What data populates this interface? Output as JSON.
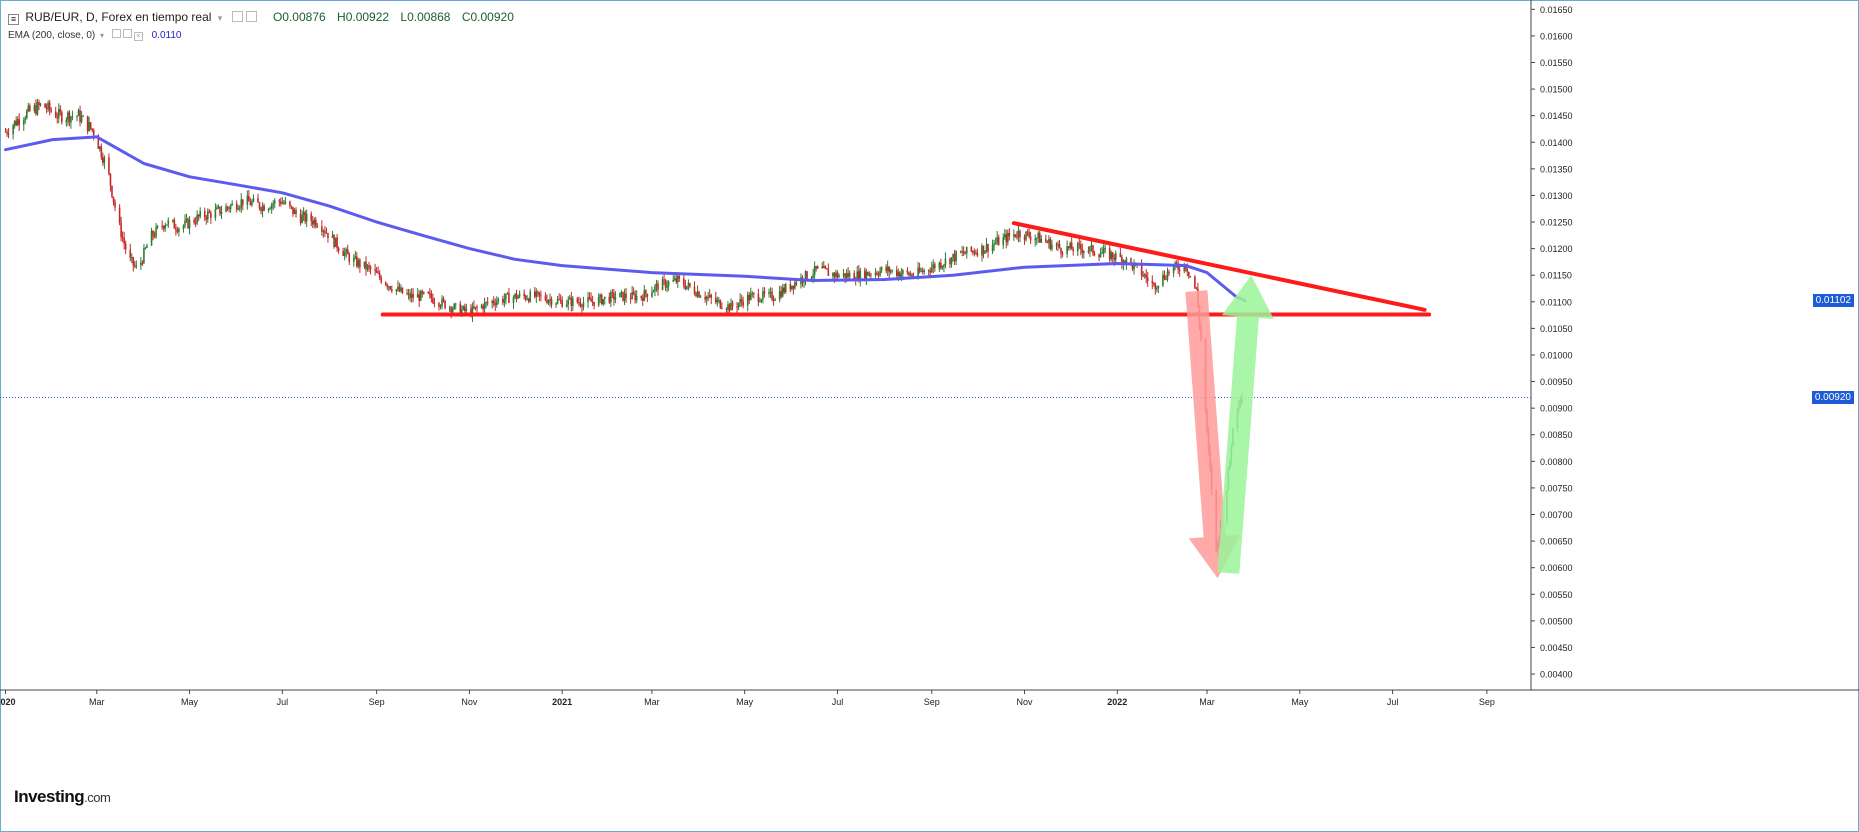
{
  "header": {
    "symbol": "RUB/EUR, D, Forex en tiempo real",
    "open": "O0.00876",
    "high": "H0.00922",
    "low": "L0.00868",
    "close": "C0.00920"
  },
  "indicator": {
    "label": "EMA (200, close, 0)",
    "value": "0.0110"
  },
  "logo": {
    "main": "Investing",
    "suffix": ".com"
  },
  "price_tags": {
    "ema": "0.01102",
    "last": "0.00920"
  },
  "colors": {
    "up_candle": "#2e7d32",
    "down_candle": "#c62828",
    "ema_line": "#5b5bf0",
    "trendline": "#ff1a1a",
    "down_arrow": "#ff9a9a",
    "up_arrow": "#9af59a",
    "tag_bg": "#1e5bd6"
  },
  "chart_data": {
    "type": "line",
    "title": "RUB/EUR, D, Forex en tiempo real",
    "xlabel": "",
    "ylabel": "",
    "x_range": [
      "2019-12-31",
      "2022-09-30"
    ],
    "ylim": [
      0.0037,
      0.0166
    ],
    "y_ticks": [
      "0.01650",
      "0.01600",
      "0.01550",
      "0.01500",
      "0.01450",
      "0.01400",
      "0.01350",
      "0.01300",
      "0.01250",
      "0.01200",
      "0.01150",
      "0.01100",
      "0.01050",
      "0.01000",
      "0.00950",
      "0.00900",
      "0.00850",
      "0.00800",
      "0.00750",
      "0.00700",
      "0.00650",
      "0.00600",
      "0.00550",
      "0.00500",
      "0.00450",
      "0.00400"
    ],
    "x_ticks": [
      {
        "date": "2020-01-01",
        "label": "2020"
      },
      {
        "date": "2020-03-01",
        "label": "Mar"
      },
      {
        "date": "2020-05-01",
        "label": "May"
      },
      {
        "date": "2020-07-01",
        "label": "Jul"
      },
      {
        "date": "2020-09-01",
        "label": "Sep"
      },
      {
        "date": "2020-11-01",
        "label": "Nov"
      },
      {
        "date": "2021-01-01",
        "label": "2021"
      },
      {
        "date": "2021-03-01",
        "label": "Mar"
      },
      {
        "date": "2021-05-01",
        "label": "May"
      },
      {
        "date": "2021-07-01",
        "label": "Jul"
      },
      {
        "date": "2021-09-01",
        "label": "Sep"
      },
      {
        "date": "2021-11-01",
        "label": "Nov"
      },
      {
        "date": "2022-01-01",
        "label": "2022"
      },
      {
        "date": "2022-03-01",
        "label": "Mar"
      },
      {
        "date": "2022-05-01",
        "label": "May"
      },
      {
        "date": "2022-07-01",
        "label": "Jul"
      },
      {
        "date": "2022-09-01",
        "label": "Sep"
      }
    ],
    "series": [
      {
        "name": "RUB/EUR",
        "style": "candlestick",
        "points": [
          [
            "2020-01-01",
            0.0142
          ],
          [
            "2020-01-12",
            0.0145
          ],
          [
            "2020-01-25",
            0.0147
          ],
          [
            "2020-02-05",
            0.0145
          ],
          [
            "2020-02-18",
            0.0145
          ],
          [
            "2020-02-28",
            0.0142
          ],
          [
            "2020-03-08",
            0.0135
          ],
          [
            "2020-03-15",
            0.0125
          ],
          [
            "2020-03-22",
            0.0118
          ],
          [
            "2020-03-28",
            0.0116
          ],
          [
            "2020-04-05",
            0.0122
          ],
          [
            "2020-04-15",
            0.0125
          ],
          [
            "2020-04-25",
            0.0124
          ],
          [
            "2020-05-08",
            0.0126
          ],
          [
            "2020-05-20",
            0.0127
          ],
          [
            "2020-06-05",
            0.0129
          ],
          [
            "2020-06-18",
            0.0128
          ],
          [
            "2020-06-30",
            0.0129
          ],
          [
            "2020-07-12",
            0.0126
          ],
          [
            "2020-07-25",
            0.0125
          ],
          [
            "2020-08-05",
            0.0121
          ],
          [
            "2020-08-15",
            0.0118
          ],
          [
            "2020-08-28",
            0.0116
          ],
          [
            "2020-09-10",
            0.0113
          ],
          [
            "2020-09-22",
            0.0111
          ],
          [
            "2020-10-05",
            0.0111
          ],
          [
            "2020-10-20",
            0.0109
          ],
          [
            "2020-11-01",
            0.0108
          ],
          [
            "2020-11-15",
            0.011
          ],
          [
            "2020-12-01",
            0.0111
          ],
          [
            "2020-12-15",
            0.0111
          ],
          [
            "2021-01-01",
            0.011
          ],
          [
            "2021-01-20",
            0.011
          ],
          [
            "2021-02-05",
            0.0111
          ],
          [
            "2021-02-22",
            0.0111
          ],
          [
            "2021-03-05",
            0.0113
          ],
          [
            "2021-03-18",
            0.0114
          ],
          [
            "2021-03-30",
            0.0112
          ],
          [
            "2021-04-12",
            0.011
          ],
          [
            "2021-04-22",
            0.0109
          ],
          [
            "2021-05-05",
            0.0111
          ],
          [
            "2021-05-20",
            0.0111
          ],
          [
            "2021-06-05",
            0.0114
          ],
          [
            "2021-06-18",
            0.0116
          ],
          [
            "2021-07-01",
            0.0115
          ],
          [
            "2021-07-15",
            0.0115
          ],
          [
            "2021-08-01",
            0.0116
          ],
          [
            "2021-08-20",
            0.0115
          ],
          [
            "2021-09-05",
            0.0117
          ],
          [
            "2021-09-20",
            0.0119
          ],
          [
            "2021-10-05",
            0.012
          ],
          [
            "2021-10-20",
            0.0122
          ],
          [
            "2021-10-28",
            0.0123
          ],
          [
            "2021-11-10",
            0.0122
          ],
          [
            "2021-11-25",
            0.012
          ],
          [
            "2021-12-10",
            0.012
          ],
          [
            "2021-12-25",
            0.0119
          ],
          [
            "2022-01-05",
            0.0118
          ],
          [
            "2022-01-15",
            0.0116
          ],
          [
            "2022-01-25",
            0.0113
          ],
          [
            "2022-02-05",
            0.0116
          ],
          [
            "2022-02-15",
            0.0117
          ],
          [
            "2022-02-22",
            0.0112
          ],
          [
            "2022-02-25",
            0.0103
          ],
          [
            "2022-03-01",
            0.0085
          ],
          [
            "2022-03-04",
            0.0075
          ],
          [
            "2022-03-07",
            0.0063
          ],
          [
            "2022-03-10",
            0.0068
          ],
          [
            "2022-03-14",
            0.0075
          ],
          [
            "2022-03-18",
            0.0086
          ],
          [
            "2022-03-22",
            0.0092
          ],
          [
            "2022-03-25",
            0.0092
          ]
        ]
      },
      {
        "name": "EMA (200, close, 0)",
        "style": "line",
        "points": [
          [
            "2020-01-01",
            0.01386
          ],
          [
            "2020-02-01",
            0.01405
          ],
          [
            "2020-03-01",
            0.0141
          ],
          [
            "2020-04-01",
            0.0136
          ],
          [
            "2020-05-01",
            0.01335
          ],
          [
            "2020-06-01",
            0.0132
          ],
          [
            "2020-07-01",
            0.01305
          ],
          [
            "2020-08-01",
            0.0128
          ],
          [
            "2020-09-01",
            0.0125
          ],
          [
            "2020-10-01",
            0.01225
          ],
          [
            "2020-11-01",
            0.012
          ],
          [
            "2020-12-01",
            0.0118
          ],
          [
            "2021-01-01",
            0.01168
          ],
          [
            "2021-03-01",
            0.01155
          ],
          [
            "2021-05-01",
            0.01148
          ],
          [
            "2021-06-15",
            0.0114
          ],
          [
            "2021-08-01",
            0.01142
          ],
          [
            "2021-09-15",
            0.0115
          ],
          [
            "2021-11-01",
            0.01165
          ],
          [
            "2022-01-01",
            0.01172
          ],
          [
            "2022-02-15",
            0.01168
          ],
          [
            "2022-03-01",
            0.01155
          ],
          [
            "2022-03-20",
            0.0111
          ],
          [
            "2022-03-26",
            0.01102
          ]
        ]
      }
    ],
    "annotations": [
      {
        "type": "line",
        "name": "support",
        "from": [
          "2020-09-05",
          0.01076
        ],
        "to": [
          "2022-07-25",
          0.01076
        ]
      },
      {
        "type": "line",
        "name": "resistance",
        "from": [
          "2021-10-25",
          0.01248
        ],
        "to": [
          "2022-07-22",
          0.01085
        ]
      },
      {
        "type": "arrow",
        "name": "drop",
        "from": [
          "2022-02-22",
          0.0112
        ],
        "to": [
          "2022-03-08",
          0.0058
        ]
      },
      {
        "type": "arrow",
        "name": "rebound",
        "from": [
          "2022-03-15",
          0.0059
        ],
        "to": [
          "2022-03-30",
          0.0115
        ]
      }
    ]
  }
}
